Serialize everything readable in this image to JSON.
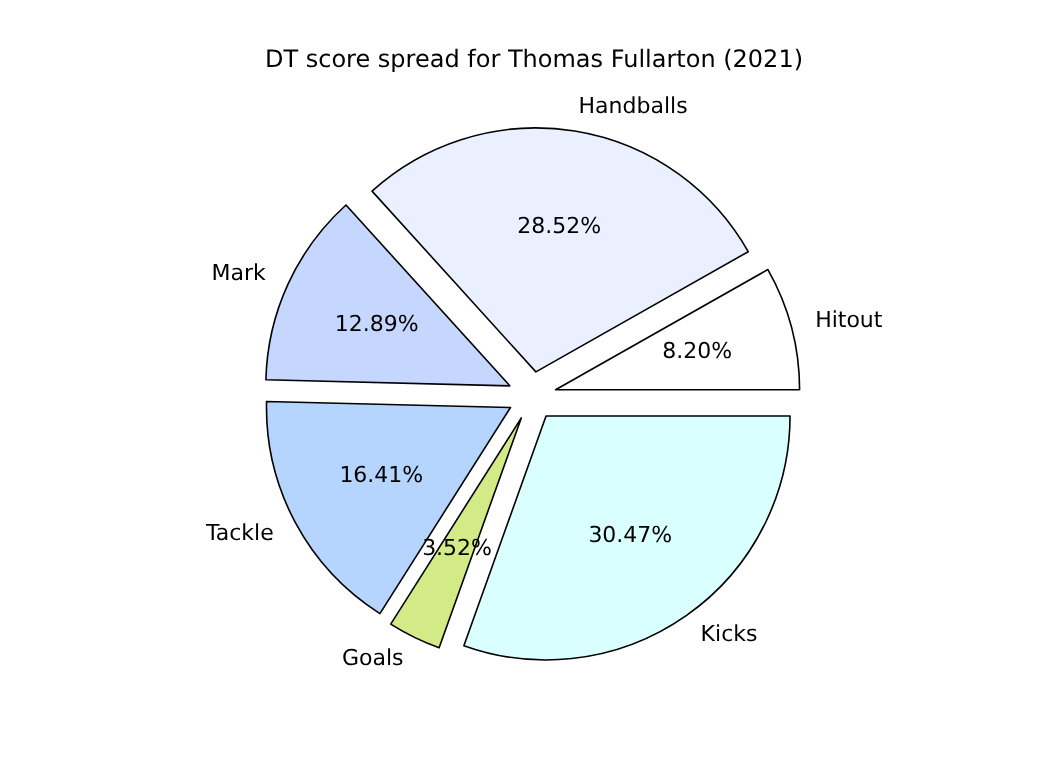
{
  "chart_data": {
    "type": "pie",
    "title": "DT score spread for Thomas Fullarton (2021)",
    "categories": [
      "Hitout",
      "Handballs",
      "Mark",
      "Tackle",
      "Goals",
      "Kicks"
    ],
    "values": [
      8.2,
      28.52,
      12.89,
      16.41,
      3.52,
      30.47
    ],
    "value_labels": [
      "8.20%",
      "28.52%",
      "12.89%",
      "16.41%",
      "3.52%",
      "30.47%"
    ],
    "colors": [
      "#ffffff",
      "#eaf0ff",
      "#c6d7ff",
      "#b5d5ff",
      "#d2eb87",
      "#d9ffff"
    ]
  }
}
